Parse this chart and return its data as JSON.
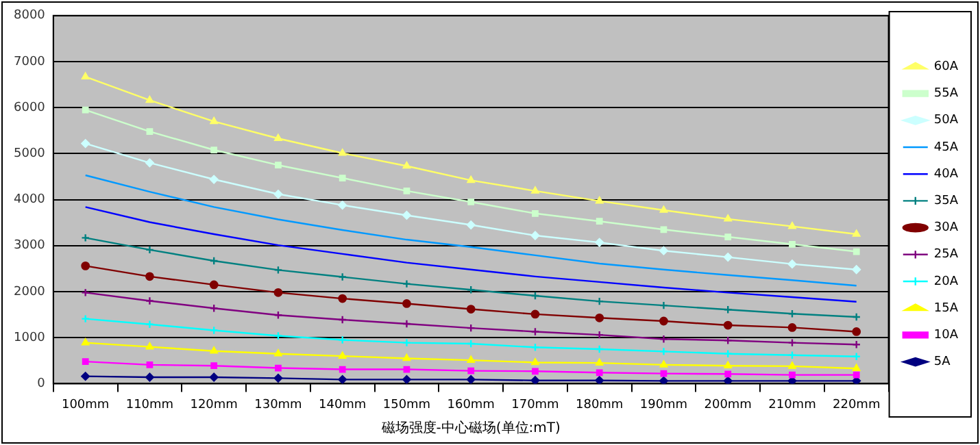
{
  "chart_data": {
    "type": "line",
    "xlabel": "磁场强度-中心磁场(单位:mT)",
    "categories": [
      "100mm",
      "110mm",
      "120mm",
      "130mm",
      "140mm",
      "150mm",
      "160mm",
      "170mm",
      "180mm",
      "190mm",
      "200mm",
      "210mm",
      "220mm"
    ],
    "ylim": [
      0,
      8000
    ],
    "yticks": [
      0,
      1000,
      2000,
      3000,
      4000,
      5000,
      6000,
      7000,
      8000
    ],
    "grid": "y",
    "legend": "right",
    "line_style": "solid",
    "series": [
      {
        "name": "60A",
        "color": "#ffff66",
        "marker": "triangle",
        "values": [
          6670,
          6160,
          5700,
          5330,
          5010,
          4730,
          4420,
          4190,
          3970,
          3770,
          3580,
          3420,
          3250
        ]
      },
      {
        "name": "55A",
        "color": "#ccffcc",
        "marker": "square",
        "values": [
          5950,
          5480,
          5080,
          4750,
          4470,
          4190,
          3950,
          3700,
          3530,
          3350,
          3190,
          3030,
          2870
        ]
      },
      {
        "name": "50A",
        "color": "#ccffff",
        "marker": "diamond",
        "values": [
          5220,
          4800,
          4440,
          4120,
          3880,
          3660,
          3450,
          3220,
          3070,
          2890,
          2750,
          2600,
          2480
        ]
      },
      {
        "name": "45A",
        "color": "#0099ff",
        "marker": "none",
        "values": [
          4530,
          4170,
          3840,
          3570,
          3340,
          3130,
          2970,
          2790,
          2610,
          2480,
          2360,
          2250,
          2130
        ]
      },
      {
        "name": "40A",
        "color": "#0000ff",
        "marker": "none",
        "values": [
          3840,
          3510,
          3250,
          3010,
          2820,
          2630,
          2480,
          2330,
          2210,
          2090,
          1980,
          1880,
          1780
        ]
      },
      {
        "name": "35A",
        "color": "#008080",
        "marker": "cross",
        "values": [
          3170,
          2910,
          2670,
          2470,
          2320,
          2170,
          2040,
          1910,
          1790,
          1700,
          1610,
          1520,
          1450
        ]
      },
      {
        "name": "30A",
        "color": "#800000",
        "marker": "circle",
        "values": [
          2560,
          2330,
          2150,
          1980,
          1850,
          1740,
          1620,
          1510,
          1430,
          1360,
          1270,
          1220,
          1130
        ]
      },
      {
        "name": "25A",
        "color": "#800080",
        "marker": "cross",
        "values": [
          1980,
          1800,
          1640,
          1490,
          1390,
          1300,
          1210,
          1130,
          1060,
          970,
          940,
          890,
          850
        ]
      },
      {
        "name": "20A",
        "color": "#00ffff",
        "marker": "cross",
        "values": [
          1410,
          1290,
          1160,
          1040,
          950,
          890,
          870,
          790,
          750,
          700,
          650,
          620,
          590
        ]
      },
      {
        "name": "15A",
        "color": "#ffff00",
        "marker": "triangle",
        "values": [
          890,
          800,
          710,
          650,
          600,
          550,
          510,
          460,
          450,
          410,
          390,
          380,
          330
        ]
      },
      {
        "name": "10A",
        "color": "#ff00ff",
        "marker": "square",
        "values": [
          480,
          410,
          390,
          340,
          310,
          310,
          280,
          270,
          240,
          220,
          210,
          190,
          190
        ]
      },
      {
        "name": "5A",
        "color": "#000080",
        "marker": "diamond",
        "values": [
          160,
          140,
          140,
          120,
          90,
          90,
          90,
          70,
          70,
          60,
          60,
          60,
          60
        ]
      }
    ]
  }
}
